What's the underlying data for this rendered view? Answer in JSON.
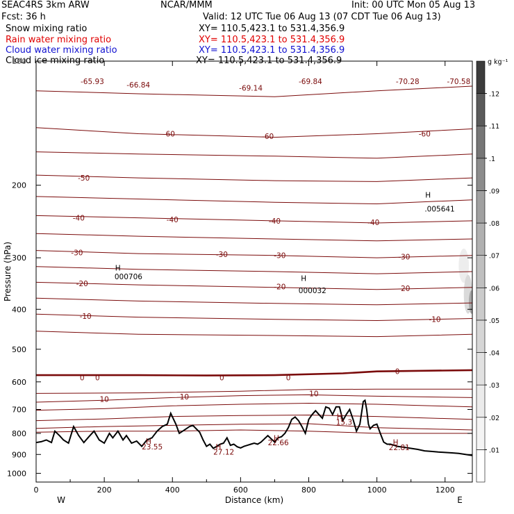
{
  "header": {
    "model": "SEAC4RS  3km ARW",
    "org": "NCAR/MMM",
    "init": "Init: 00 UTC Mon 05 Aug 13",
    "fcst": "Fcst:   36 h",
    "valid": "Valid: 12 UTC Tue 06 Aug 13 (07 CDT Tue 06 Aug 13)",
    "fields": [
      {
        "label": "Snow mixing ratio",
        "color": "#000000",
        "xy": "XY= 110.5,423.1 to 531.4,356.9"
      },
      {
        "label": "Rain water mixing ratio",
        "color": "#e00000",
        "xy": "XY= 110.5,423.1 to 531.4,356.9"
      },
      {
        "label": "Cloud water mixing ratio",
        "color": "#1010d0",
        "xy": "XY= 110.5,423.1 to 531.4,356.9"
      },
      {
        "label": "Cloud ice mixing ratio",
        "color": "#000000",
        "xy": "XY= 110.5,423.1 to 531.4,356.9"
      }
    ]
  },
  "chart_data": {
    "type": "cross-section",
    "xlabel": "Distance (km)",
    "ylabel": "Pressure (hPa)",
    "xlim": [
      0,
      1280
    ],
    "ylim": [
      1050,
      100
    ],
    "y_scale": "log",
    "x_ticks": [
      0,
      200,
      400,
      600,
      800,
      1000,
      1200
    ],
    "y_ticks": [
      100,
      200,
      300,
      400,
      500,
      600,
      700,
      800,
      900,
      1000
    ],
    "y_tick_labels": [
      "",
      "200",
      "300",
      "400",
      "500",
      "600",
      "700",
      "800",
      "900",
      "1000"
    ],
    "y_top_label": "100",
    "endpoint_labels": {
      "left": "W",
      "right": "E"
    },
    "colorbar": {
      "unit": "g kg⁻¹",
      "ticks": [
        ".01",
        ".02",
        ".03",
        ".04",
        ".05",
        ".06",
        ".07",
        ".08",
        ".09",
        ".1",
        ".11",
        ".12"
      ],
      "levels": [
        0.005,
        0.015,
        0.025,
        0.035,
        0.045,
        0.055,
        0.065,
        0.075,
        0.085,
        0.095,
        0.105,
        0.115,
        0.125
      ],
      "colors": [
        "#ffffff",
        "#f4f4f4",
        "#ebebeb",
        "#e1e1e1",
        "#d6d6d6",
        "#cbcbcb",
        "#bfbfbf",
        "#b0b0b0",
        "#a0a0a0",
        "#8c8c8c",
        "#767676",
        "#5a5a5a",
        "#3c3c3c"
      ]
    },
    "temperature_isotherms": {
      "color": "#7a0a0a",
      "levels": [
        {
          "value": -70,
          "p": [
            [
              0,
              118
            ],
            [
              300,
              120
            ],
            [
              700,
              122
            ],
            [
              1000,
              118
            ],
            [
              1280,
              115
            ]
          ]
        },
        {
          "value": -60,
          "p": [
            [
              0,
              145
            ],
            [
              300,
              150
            ],
            [
              700,
              153
            ],
            [
              1000,
              150
            ],
            [
              1280,
              146
            ]
          ]
        },
        {
          "value": -55,
          "p": [
            [
              0,
              166
            ],
            [
              300,
              168
            ],
            [
              700,
              170
            ],
            [
              1000,
              172
            ],
            [
              1280,
              168
            ]
          ]
        },
        {
          "value": -50,
          "p": [
            [
              0,
              189
            ],
            [
              300,
              192
            ],
            [
              700,
              195
            ],
            [
              1000,
              196
            ],
            [
              1280,
              192
            ]
          ]
        },
        {
          "value": -45,
          "p": [
            [
              0,
              213
            ],
            [
              300,
              216
            ],
            [
              700,
              220
            ],
            [
              1000,
              222
            ],
            [
              1280,
              217
            ]
          ]
        },
        {
          "value": -40,
          "p": [
            [
              0,
              237
            ],
            [
              300,
              240
            ],
            [
              700,
              244
            ],
            [
              1000,
              247
            ],
            [
              1280,
              244
            ]
          ]
        },
        {
          "value": -35,
          "p": [
            [
              0,
              262
            ],
            [
              300,
              266
            ],
            [
              700,
              270
            ],
            [
              1000,
              273
            ],
            [
              1280,
              270
            ]
          ]
        },
        {
          "value": -30,
          "p": [
            [
              0,
              288
            ],
            [
              300,
              293
            ],
            [
              700,
              296
            ],
            [
              1000,
              300
            ],
            [
              1280,
              296
            ]
          ]
        },
        {
          "value": -25,
          "p": [
            [
              0,
              315
            ],
            [
              300,
              320
            ],
            [
              700,
              324
            ],
            [
              1000,
              328
            ],
            [
              1280,
              324
            ]
          ]
        },
        {
          "value": -20,
          "p": [
            [
              0,
              344
            ],
            [
              300,
              349
            ],
            [
              700,
              354
            ],
            [
              1000,
              358
            ],
            [
              1280,
              354
            ]
          ]
        },
        {
          "value": -15,
          "p": [
            [
              0,
              376
            ],
            [
              300,
              382
            ],
            [
              700,
              387
            ],
            [
              1000,
              390
            ],
            [
              1280,
              386
            ]
          ]
        },
        {
          "value": -10,
          "p": [
            [
              0,
              411
            ],
            [
              300,
              418
            ],
            [
              700,
              423
            ],
            [
              1000,
              426
            ],
            [
              1280,
              421
            ]
          ]
        },
        {
          "value": -5,
          "p": [
            [
              0,
              452
            ],
            [
              300,
              460
            ],
            [
              700,
              463
            ],
            [
              1000,
              466
            ],
            [
              1280,
              460
            ]
          ]
        },
        {
          "value": 0,
          "p": [
            [
              0,
              578
            ],
            [
              300,
              578
            ],
            [
              500,
              579
            ],
            [
              700,
              578
            ],
            [
              900,
              572
            ],
            [
              1000,
              566
            ],
            [
              1280,
              562
            ]
          ]
        },
        {
          "value": 5,
          "p": [
            [
              0,
              640
            ],
            [
              300,
              638
            ],
            [
              600,
              632
            ],
            [
              800,
              626
            ],
            [
              1000,
              625
            ],
            [
              1280,
              625
            ]
          ]
        },
        {
          "value": 10,
          "p": [
            [
              0,
              672
            ],
            [
              200,
              665
            ],
            [
              400,
              655
            ],
            [
              600,
              648
            ],
            [
              800,
              645
            ],
            [
              1000,
              650
            ],
            [
              1280,
              655
            ]
          ]
        },
        {
          "value": 15,
          "p": [
            [
              0,
              703
            ],
            [
              200,
              697
            ],
            [
              400,
              686
            ],
            [
              600,
              680
            ],
            [
              800,
              676
            ],
            [
              1000,
              680
            ],
            [
              1280,
              690
            ]
          ]
        },
        {
          "value": 20,
          "p": [
            [
              0,
              745
            ],
            [
              200,
              738
            ],
            [
              400,
              728
            ],
            [
              600,
              724
            ],
            [
              800,
              722
            ],
            [
              1000,
              728
            ],
            [
              1280,
              740
            ]
          ]
        },
        {
          "value": 25,
          "p": [
            [
              0,
              778
            ],
            [
              200,
              770
            ],
            [
              400,
              765
            ],
            [
              600,
              760
            ],
            [
              800,
              758
            ],
            [
              1000,
              775
            ],
            [
              1280,
              785
            ]
          ]
        },
        {
          "value": 28,
          "p": [
            [
              0,
              795
            ],
            [
              200,
              790
            ],
            [
              400,
              790
            ],
            [
              600,
              785
            ],
            [
              800,
              790
            ],
            [
              1000,
              800
            ],
            [
              1280,
              800
            ]
          ]
        }
      ],
      "labels": [
        {
          "text": "-65.93",
          "x": 165,
          "p": 112
        },
        {
          "text": "-66.84",
          "x": 300,
          "p": 114
        },
        {
          "text": "-69.14",
          "x": 630,
          "p": 116
        },
        {
          "text": "-69.84",
          "x": 805,
          "p": 112
        },
        {
          "text": "-70.28",
          "x": 1090,
          "p": 112
        },
        {
          "text": "-70.58",
          "x": 1240,
          "p": 112
        },
        {
          "text": "-60",
          "x": 390,
          "p": 150
        },
        {
          "text": "-60",
          "x": 680,
          "p": 152
        },
        {
          "text": "-60",
          "x": 1140,
          "p": 150
        },
        {
          "text": "-50",
          "x": 140,
          "p": 192
        },
        {
          "text": "-40",
          "x": 125,
          "p": 240
        },
        {
          "text": "-40",
          "x": 400,
          "p": 242
        },
        {
          "text": "-40",
          "x": 700,
          "p": 244
        },
        {
          "text": "-40",
          "x": 990,
          "p": 246
        },
        {
          "text": "-30",
          "x": 120,
          "p": 291
        },
        {
          "text": "-30",
          "x": 545,
          "p": 294
        },
        {
          "text": "-30",
          "x": 715,
          "p": 296
        },
        {
          "text": "-30",
          "x": 1080,
          "p": 298
        },
        {
          "text": "-20",
          "x": 135,
          "p": 346
        },
        {
          "text": "-20",
          "x": 715,
          "p": 352
        },
        {
          "text": "-20",
          "x": 1080,
          "p": 356
        },
        {
          "text": "-10",
          "x": 145,
          "p": 415
        },
        {
          "text": "-10",
          "x": 1170,
          "p": 423
        },
        {
          "text": "0",
          "x": 135,
          "p": 585
        },
        {
          "text": "0",
          "x": 180,
          "p": 585
        },
        {
          "text": "0",
          "x": 545,
          "p": 585
        },
        {
          "text": "0",
          "x": 740,
          "p": 585
        },
        {
          "text": "0",
          "x": 1060,
          "p": 566
        },
        {
          "text": "10",
          "x": 200,
          "p": 660
        },
        {
          "text": "10",
          "x": 435,
          "p": 652
        },
        {
          "text": "10",
          "x": 815,
          "p": 640
        }
      ]
    },
    "terrain": {
      "x": [
        0,
        15,
        30,
        45,
        55,
        70,
        80,
        95,
        110,
        125,
        140,
        155,
        170,
        185,
        200,
        215,
        225,
        240,
        255,
        265,
        280,
        295,
        310,
        325,
        340,
        355,
        370,
        385,
        395,
        410,
        420,
        430,
        440,
        450,
        460,
        470,
        480,
        490,
        500,
        510,
        520,
        530,
        540,
        550,
        560,
        570,
        580,
        590,
        600,
        610,
        620,
        630,
        640,
        650,
        660,
        670,
        680,
        690,
        700,
        710,
        720,
        730,
        740,
        750,
        760,
        770,
        780,
        790,
        800,
        810,
        820,
        830,
        840,
        850,
        860,
        870,
        880,
        890,
        900,
        910,
        920,
        930,
        940,
        950,
        960,
        965,
        970,
        975,
        980,
        990,
        1000,
        1010,
        1020,
        1030,
        1040,
        1050,
        1060,
        1080,
        1100,
        1120,
        1140,
        1160,
        1180,
        1200,
        1220,
        1240,
        1260,
        1280
      ],
      "p": [
        842,
        838,
        830,
        842,
        790,
        812,
        830,
        845,
        770,
        810,
        842,
        815,
        790,
        830,
        845,
        800,
        820,
        790,
        830,
        810,
        845,
        835,
        860,
        830,
        820,
        790,
        770,
        760,
        715,
        760,
        800,
        790,
        780,
        770,
        765,
        780,
        795,
        830,
        860,
        850,
        870,
        860,
        850,
        845,
        820,
        855,
        850,
        862,
        868,
        860,
        855,
        850,
        845,
        850,
        840,
        825,
        810,
        825,
        840,
        820,
        815,
        800,
        775,
        740,
        730,
        745,
        770,
        800,
        740,
        720,
        705,
        720,
        735,
        690,
        695,
        720,
        690,
        690,
        745,
        720,
        700,
        740,
        790,
        760,
        670,
        665,
        700,
        760,
        780,
        765,
        760,
        800,
        840,
        850,
        850,
        855,
        860,
        865,
        870,
        875,
        882,
        885,
        888,
        890,
        892,
        895,
        900,
        905
      ]
    },
    "highs": [
      {
        "text": "000706",
        "x": 230,
        "p": 333,
        "h_x": 240,
        "h_p": 317
      },
      {
        "text": "000032",
        "x": 770,
        "p": 360,
        "h_x": 785,
        "h_p": 336
      },
      {
        "text": ".005641",
        "x": 1140,
        "p": 228,
        "h_x": 1150,
        "h_p": 211
      },
      {
        "text": "23.55",
        "x": 310,
        "p": 862,
        "h_x": 330,
        "h_p": 835
      },
      {
        "text": "27.12",
        "x": 520,
        "p": 887,
        "h_x": 535,
        "h_p": 862
      },
      {
        "text": "22.66",
        "x": 680,
        "p": 842,
        "h_x": 705,
        "h_p": 820
      },
      {
        "text": "15.3",
        "x": 880,
        "p": 750,
        "h_x": 890,
        "h_p": 728
      },
      {
        "text": "22.81",
        "x": 1035,
        "p": 865,
        "h_x": 1055,
        "h_p": 840
      }
    ],
    "cloud_shading": [
      {
        "x": 1240,
        "p": 285,
        "w": 30,
        "dp": 60,
        "level": 0.03
      },
      {
        "x": 1255,
        "p": 330,
        "w": 25,
        "dp": 80,
        "level": 0.05
      },
      {
        "x": 1270,
        "p": 360,
        "w": 15,
        "dp": 50,
        "level": 0.09
      }
    ]
  }
}
